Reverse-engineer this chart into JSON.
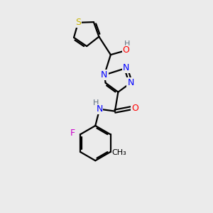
{
  "background_color": "#ebebeb",
  "bond_color": "#000000",
  "atom_colors": {
    "S": "#c8b400",
    "N": "#0000ff",
    "O": "#ff0000",
    "F": "#cc00cc",
    "H": "#607080",
    "C": "#000000"
  },
  "figsize": [
    3.0,
    3.0
  ],
  "dpi": 100,
  "xlim": [
    0,
    10
  ],
  "ylim": [
    0,
    10
  ]
}
